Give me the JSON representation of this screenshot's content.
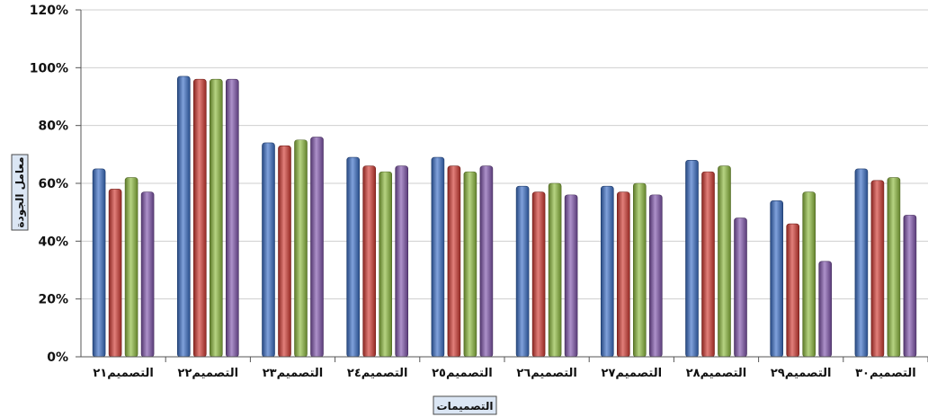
{
  "chart_data": {
    "type": "bar",
    "title": "",
    "xlabel": "التصميمات",
    "ylabel": "معامل الجودة",
    "ylim": [
      0,
      120
    ],
    "yticks": [
      "0%",
      "20%",
      "40%",
      "60%",
      "80%",
      "100%",
      "120%"
    ],
    "ytick_values": [
      0,
      20,
      40,
      60,
      80,
      100,
      120
    ],
    "grid": true,
    "legend": "none",
    "categories": [
      "التصميم٢١",
      "التصميم٢٢",
      "التصميم٢٣",
      "التصميم٢٤",
      "التصميم٢٥",
      "التصميم٢٦",
      "التصميم٢٧",
      "التصميم٢٨",
      "التصميم٢٩",
      "التصميم٣٠"
    ],
    "series": [
      {
        "color": "#3b6fc7",
        "values": [
          65,
          97,
          74,
          69,
          69,
          59,
          59,
          68,
          54,
          65
        ]
      },
      {
        "color": "#d23a32",
        "values": [
          58,
          96,
          73,
          66,
          66,
          57,
          57,
          64,
          46,
          61
        ]
      },
      {
        "color": "#8fbc3f",
        "values": [
          62,
          96,
          75,
          64,
          64,
          60,
          60,
          66,
          57,
          62
        ]
      },
      {
        "color": "#8156ad",
        "values": [
          57,
          96,
          76,
          66,
          66,
          56,
          56,
          48,
          33,
          49
        ]
      }
    ]
  }
}
